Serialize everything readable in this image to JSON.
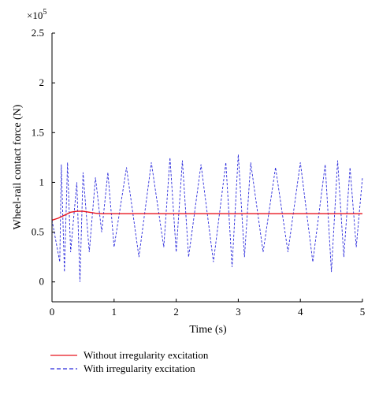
{
  "chart_data": {
    "type": "line",
    "title": "",
    "xlabel": "Time (s)",
    "ylabel": "Wheel-rail contact force (N)",
    "xlim": [
      0,
      5
    ],
    "ylim": [
      -0.2,
      2.5
    ],
    "x_ticks": [
      0,
      1,
      2,
      3,
      4,
      5
    ],
    "x_tick_labels": [
      "0",
      "1",
      "2",
      "3",
      "4",
      "5"
    ],
    "y_ticks": [
      0,
      0.5,
      1,
      1.5,
      2,
      2.5
    ],
    "y_tick_labels": [
      "0",
      "0.5",
      "1",
      "1.5",
      "2",
      "2.5"
    ],
    "y_multiplier_label": "×10",
    "y_multiplier_exponent": "5",
    "grid": false,
    "legend_position": "bottom",
    "series": [
      {
        "name": "Without irregularity excitation",
        "color": "#e8141e",
        "style": "solid",
        "x": [
          0,
          0.1,
          0.2,
          0.3,
          0.4,
          0.5,
          0.6,
          0.7,
          0.8,
          1.0,
          1.5,
          2.0,
          2.5,
          3.0,
          3.5,
          4.0,
          4.5,
          5.0
        ],
        "values": [
          0.62,
          0.64,
          0.67,
          0.7,
          0.71,
          0.71,
          0.7,
          0.69,
          0.685,
          0.685,
          0.685,
          0.685,
          0.685,
          0.685,
          0.685,
          0.685,
          0.685,
          0.685
        ]
      },
      {
        "name": "With irregularity excitation",
        "color": "#2a2adc",
        "style": "dashed",
        "x": [
          0,
          0.125,
          0.15,
          0.2,
          0.25,
          0.3,
          0.4,
          0.45,
          0.5,
          0.6,
          0.7,
          0.8,
          0.9,
          1.0,
          1.2,
          1.4,
          1.6,
          1.8,
          1.9,
          2.0,
          2.1,
          2.2,
          2.4,
          2.6,
          2.8,
          2.9,
          3.0,
          3.1,
          3.2,
          3.4,
          3.6,
          3.8,
          4.0,
          4.2,
          4.4,
          4.5,
          4.6,
          4.7,
          4.8,
          4.9,
          5.0
        ],
        "values": [
          0.62,
          0.2,
          1.18,
          0.1,
          1.2,
          0.3,
          1.0,
          0.0,
          1.1,
          0.3,
          1.05,
          0.5,
          1.1,
          0.35,
          1.15,
          0.25,
          1.2,
          0.35,
          1.25,
          0.3,
          1.22,
          0.25,
          1.18,
          0.2,
          1.2,
          0.15,
          1.28,
          0.25,
          1.2,
          0.3,
          1.15,
          0.3,
          1.2,
          0.2,
          1.18,
          0.1,
          1.22,
          0.25,
          1.15,
          0.35,
          1.05
        ]
      }
    ]
  }
}
